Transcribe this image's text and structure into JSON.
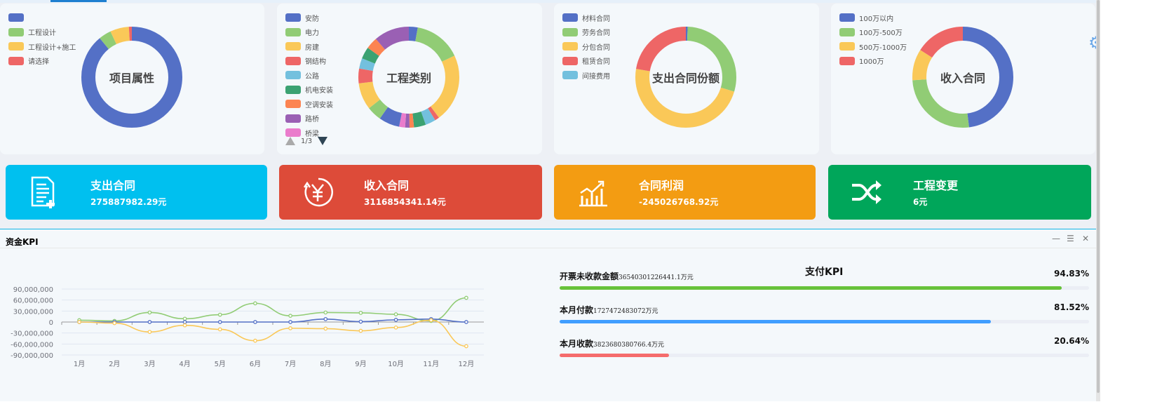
{
  "palette": [
    "#5470c6",
    "#91cc75",
    "#fac858",
    "#ee6666",
    "#73c0de",
    "#3ba272",
    "#fc8452",
    "#9a60b4",
    "#ea7ccc"
  ],
  "donuts": [
    {
      "title": "项目属性",
      "legend": [
        "",
        "工程设计",
        "工程设计+施工",
        "请选择"
      ],
      "values": [
        89,
        4,
        6,
        1
      ],
      "colors": [
        "#5470c6",
        "#91cc75",
        "#fac858",
        "#ee6666"
      ]
    },
    {
      "title": "工程类别",
      "legend": [
        "安防",
        "电力",
        "房建",
        "钢结构",
        "公路",
        "机电安装",
        "空调安装",
        "路桥",
        "桥梁"
      ],
      "pager": "1/3",
      "values": [
        3,
        16,
        23,
        1.5,
        3.5,
        4,
        1.5,
        1.5,
        2,
        7,
        5,
        9,
        5,
        3.5,
        4,
        4,
        12
      ],
      "colors": [
        "#5470c6",
        "#91cc75",
        "#fac858",
        "#ee6666",
        "#73c0de",
        "#3ba272",
        "#fc8452",
        "#9a60b4",
        "#ea7ccc",
        "#5470c6",
        "#91cc75",
        "#fac858",
        "#ee6666",
        "#73c0de",
        "#3ba272",
        "#fc8452",
        "#9a60b4"
      ]
    },
    {
      "title": "支出合同份额",
      "legend": [
        "材料合同",
        "劳务合同",
        "分包合同",
        "租赁合同",
        "间接费用"
      ],
      "values": [
        0.6,
        29,
        48,
        22.4,
        0
      ],
      "colors": [
        "#5470c6",
        "#91cc75",
        "#fac858",
        "#ee6666",
        "#73c0de"
      ]
    },
    {
      "title": "收入合同",
      "legend": [
        "100万以内",
        "100万-500万",
        "500万-1000万",
        "1000万"
      ],
      "values": [
        48,
        26,
        10,
        16
      ],
      "colors": [
        "#5470c6",
        "#91cc75",
        "#fac858",
        "#ee6666"
      ]
    }
  ],
  "stats": [
    {
      "title": "支出合同",
      "value": "275887982.29元",
      "color": "#00c0ef",
      "icon": "document-add-icon"
    },
    {
      "title": "收入合同",
      "value": "3116854341.14元",
      "color": "#dd4b39",
      "icon": "yen-refresh-icon"
    },
    {
      "title": "合同利润",
      "value": "-245026768.92元",
      "color": "#f39c12",
      "icon": "bar-chart-trend-icon"
    },
    {
      "title": "工程变更",
      "value": "6元",
      "color": "#00a65a",
      "icon": "shuffle-icon"
    }
  ],
  "panel": {
    "title": "资金KPI",
    "controls": [
      "—",
      "☰",
      "✕"
    ]
  },
  "chart_data": {
    "type": "line",
    "categories": [
      "1月",
      "2月",
      "3月",
      "4月",
      "5月",
      "6月",
      "7月",
      "8月",
      "9月",
      "10月",
      "11月",
      "12月"
    ],
    "yticks": [
      "90,000,000",
      "60,000,000",
      "30,000,000",
      "0",
      "-30,000,000",
      "-60,000,000",
      "-90,000,000"
    ],
    "ylim": [
      -90000000,
      90000000
    ],
    "smooth": true,
    "grid": true,
    "series": [
      {
        "color": "#91cc75",
        "values": [
          5000000,
          3000000,
          26000000,
          9000000,
          20000000,
          51000000,
          17000000,
          26000000,
          25000000,
          21000000,
          3000000,
          66000000
        ]
      },
      {
        "color": "#5470c6",
        "values": [
          0,
          0,
          0,
          0,
          0,
          0,
          0,
          8000000,
          1000000,
          6000000,
          8000000,
          0
        ]
      },
      {
        "color": "#fac858",
        "values": [
          0,
          -3000000,
          -27000000,
          -9000000,
          -20000000,
          -51000000,
          -17000000,
          -18000000,
          -24000000,
          -15000000,
          5000000,
          -66000000
        ]
      }
    ]
  },
  "kpi": {
    "title": "支付KPI",
    "items": [
      {
        "label": "开票未收款金额",
        "amount": "36540301226441.1万元",
        "percent_text": "94.83%",
        "percent": 94.83,
        "color": "#67c23a"
      },
      {
        "label": "本月付款",
        "amount": "1727472483072万元",
        "percent_text": "81.52%",
        "percent": 81.52,
        "color": "#409eff"
      },
      {
        "label": "本月收款",
        "amount": "3823680380766.4万元",
        "percent_text": "20.64%",
        "percent": 20.64,
        "color": "#f56c6c"
      }
    ]
  }
}
